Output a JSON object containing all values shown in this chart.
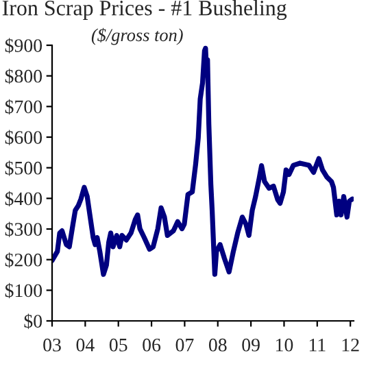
{
  "chart_data": {
    "type": "line",
    "title": "Iron Scrap Prices - #1 Busheling",
    "subtitle": "($/gross ton)",
    "x": [
      2003.0,
      2003.16,
      2003.23,
      2003.3,
      2003.43,
      2003.52,
      2003.63,
      2003.7,
      2003.79,
      2003.87,
      2003.97,
      2004.06,
      2004.14,
      2004.24,
      2004.3,
      2004.36,
      2004.44,
      2004.55,
      2004.64,
      2004.71,
      2004.77,
      2004.84,
      2004.95,
      2005.04,
      2005.11,
      2005.24,
      2005.38,
      2005.51,
      2005.58,
      2005.65,
      2005.78,
      2005.94,
      2006.05,
      2006.19,
      2006.29,
      2006.39,
      2006.48,
      2006.66,
      2006.79,
      2006.92,
      2006.99,
      2007.1,
      2007.23,
      2007.33,
      2007.41,
      2007.47,
      2007.54,
      2007.6,
      2007.63,
      2007.66,
      2007.69,
      2007.73,
      2007.79,
      2007.83,
      2007.91,
      2007.96,
      2008.07,
      2008.2,
      2008.34,
      2008.47,
      2008.6,
      2008.74,
      2008.85,
      2008.94,
      2009.04,
      2009.14,
      2009.25,
      2009.32,
      2009.41,
      2009.55,
      2009.68,
      2009.81,
      2009.88,
      2009.98,
      2010.06,
      2010.15,
      2010.28,
      2010.48,
      2010.75,
      2010.89,
      2011.05,
      2011.16,
      2011.29,
      2011.43,
      2011.49,
      2011.59,
      2011.66,
      2011.72,
      2011.8,
      2011.9,
      2011.97,
      2012.06
    ],
    "series": [
      {
        "color": "#000080",
        "values": [
          197,
          227,
          287,
          294,
          249,
          242,
          316,
          361,
          376,
          398,
          436,
          406,
          346,
          272,
          249,
          272,
          227,
          152,
          182,
          257,
          287,
          242,
          279,
          242,
          279,
          264,
          287,
          331,
          346,
          301,
          272,
          234,
          242,
          301,
          369,
          339,
          279,
          294,
          324,
          301,
          316,
          413,
          421,
          510,
          597,
          725,
          777,
          882,
          890,
          822,
          852,
          642,
          447,
          361,
          152,
          227,
          249,
          204,
          160,
          227,
          287,
          339,
          316,
          279,
          361,
          406,
          466,
          507,
          455,
          433,
          440,
          395,
          384,
          421,
          493,
          478,
          508,
          515,
          508,
          485,
          530,
          493,
          470,
          455,
          436,
          346,
          391,
          346,
          406,
          339,
          391,
          398
        ]
      }
    ],
    "xlim": [
      2003,
      2012.1
    ],
    "xticks": [
      {
        "value": 2003,
        "label": "03"
      },
      {
        "value": 2004,
        "label": "04"
      },
      {
        "value": 2005,
        "label": "05"
      },
      {
        "value": 2006,
        "label": "06"
      },
      {
        "value": 2007,
        "label": "07"
      },
      {
        "value": 2008,
        "label": "08"
      },
      {
        "value": 2009,
        "label": "09"
      },
      {
        "value": 2010,
        "label": "10"
      },
      {
        "value": 2011,
        "label": "11"
      },
      {
        "value": 2012,
        "label": "12"
      }
    ],
    "ylim": [
      0,
      900
    ],
    "yticks": [
      {
        "value": 0,
        "label": "$0"
      },
      {
        "value": 100,
        "label": "$100"
      },
      {
        "value": 200,
        "label": "$200"
      },
      {
        "value": 300,
        "label": "$300"
      },
      {
        "value": 400,
        "label": "$400"
      },
      {
        "value": 500,
        "label": "$500"
      },
      {
        "value": 600,
        "label": "$600"
      },
      {
        "value": 700,
        "label": "$700"
      },
      {
        "value": 800,
        "label": "$800"
      },
      {
        "value": 900,
        "label": "$900"
      }
    ],
    "marker": "none",
    "line_style": "solid"
  }
}
